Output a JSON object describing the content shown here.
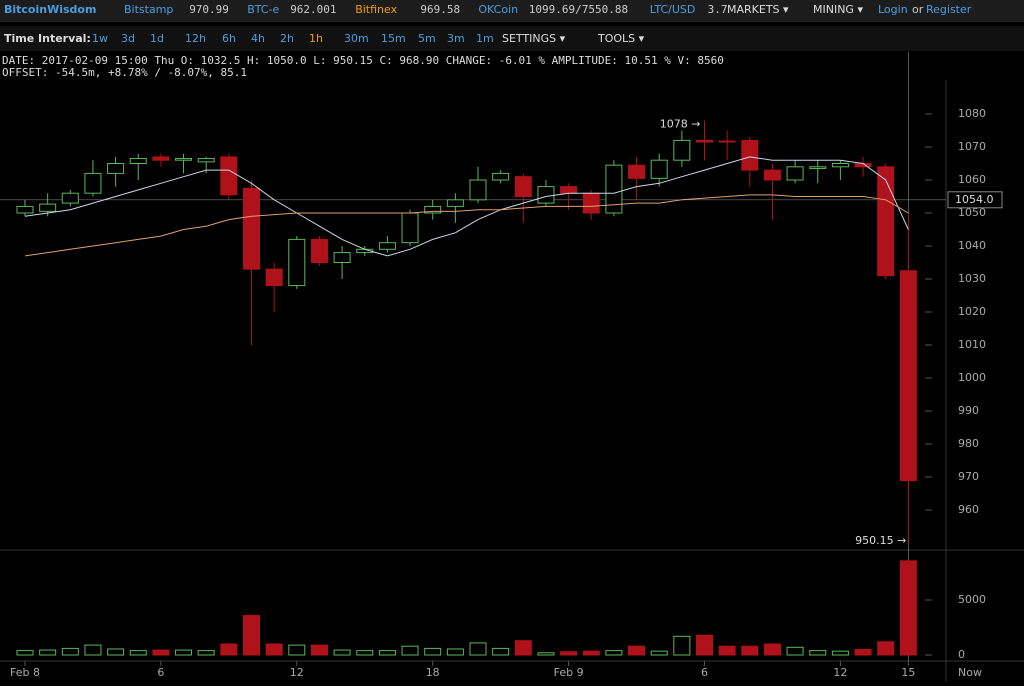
{
  "header": {
    "brand": "BitcoinWisdom",
    "tickers": [
      {
        "name": "Bitstamp",
        "price": "970.99"
      },
      {
        "name": "BTC-e",
        "price": "962.001"
      },
      {
        "name": "Bitfinex",
        "price": "969.58"
      },
      {
        "name": "OKCoin",
        "price": "1099.69/7550.88"
      },
      {
        "name": "LTC/USD",
        "price": "3.7"
      }
    ],
    "menus": [
      "MARKETS ▾",
      "MINING ▾"
    ],
    "login": "Login",
    "or": "or",
    "register": "Register"
  },
  "toolbar": {
    "label": "Time Interval:",
    "intervals": [
      "1w",
      "3d",
      "1d",
      "12h",
      "6h",
      "4h",
      "2h",
      "1h",
      "30m",
      "15m",
      "5m",
      "3m",
      "1m"
    ],
    "active": "1h",
    "menus": [
      "SETTINGS ▾",
      "TOOLS ▾"
    ]
  },
  "info": [
    "DATE: 2017-02-09 15:00 Thu    O: 1032.5    H: 1050.0    L: 950.15    C: 968.90    CHANGE: -6.01 %    AMPLITUDE: 10.51 %    V: 8560",
    "OFFSET: -54.5m, +8.78% / -8.07%, 85.1"
  ],
  "chart_data": {
    "type": "candlestick",
    "categories": [
      "Feb 8",
      null,
      null,
      null,
      null,
      null,
      "6",
      null,
      null,
      null,
      null,
      null,
      "12",
      null,
      null,
      null,
      null,
      null,
      "18",
      null,
      null,
      null,
      null,
      null,
      "Feb 9",
      null,
      null,
      null,
      null,
      null,
      "6",
      null,
      null,
      null,
      null,
      null,
      "12",
      null,
      null,
      "15"
    ],
    "now_label": "Now",
    "candles": [
      {
        "open": 1050,
        "high": 1054,
        "low": 1049,
        "close": 1052
      },
      {
        "open": 1050.5,
        "high": 1056,
        "low": 1049,
        "close": 1052.7
      },
      {
        "open": 1053,
        "high": 1057,
        "low": 1052,
        "close": 1056
      },
      {
        "open": 1056,
        "high": 1066,
        "low": 1055,
        "close": 1062
      },
      {
        "open": 1062,
        "high": 1067,
        "low": 1058,
        "close": 1065
      },
      {
        "open": 1065,
        "high": 1068,
        "low": 1060,
        "close": 1066.5
      },
      {
        "open": 1067,
        "high": 1068,
        "low": 1064,
        "close": 1066
      },
      {
        "open": 1066,
        "high": 1068,
        "low": 1062,
        "close": 1066.5
      },
      {
        "open": 1065.5,
        "high": 1067,
        "low": 1062,
        "close": 1066.5
      },
      {
        "open": 1067,
        "high": 1068,
        "low": 1054,
        "close": 1055.5
      },
      {
        "open": 1057.5,
        "high": 1060,
        "low": 1010,
        "close": 1033
      },
      {
        "open": 1033,
        "high": 1035,
        "low": 1020,
        "close": 1028
      },
      {
        "open": 1028,
        "high": 1043,
        "low": 1027,
        "close": 1042
      },
      {
        "open": 1042,
        "high": 1043,
        "low": 1034,
        "close": 1035
      },
      {
        "open": 1035,
        "high": 1040,
        "low": 1030,
        "close": 1038
      },
      {
        "open": 1038,
        "high": 1040,
        "low": 1037,
        "close": 1039
      },
      {
        "open": 1039,
        "high": 1043,
        "low": 1038,
        "close": 1041
      },
      {
        "open": 1041,
        "high": 1051,
        "low": 1040,
        "close": 1050
      },
      {
        "open": 1050,
        "high": 1054,
        "low": 1048,
        "close": 1052
      },
      {
        "open": 1052,
        "high": 1056,
        "low": 1047,
        "close": 1054
      },
      {
        "open": 1054,
        "high": 1064,
        "low": 1053,
        "close": 1060
      },
      {
        "open": 1060,
        "high": 1063,
        "low": 1059,
        "close": 1062
      },
      {
        "open": 1061,
        "high": 1062,
        "low": 1047,
        "close": 1055
      },
      {
        "open": 1053,
        "high": 1060,
        "low": 1052,
        "close": 1058
      },
      {
        "open": 1058,
        "high": 1059,
        "low": 1051,
        "close": 1056
      },
      {
        "open": 1056,
        "high": 1057,
        "low": 1048,
        "close": 1050
      },
      {
        "open": 1050,
        "high": 1066,
        "low": 1049,
        "close": 1064.5
      },
      {
        "open": 1064.5,
        "high": 1067,
        "low": 1054,
        "close": 1060.5
      },
      {
        "open": 1060.5,
        "high": 1068,
        "low": 1058,
        "close": 1066
      },
      {
        "open": 1066,
        "high": 1075,
        "low": 1064,
        "close": 1072
      },
      {
        "open": 1072,
        "high": 1078,
        "low": 1066,
        "close": 1071.5
      },
      {
        "open": 1071.8,
        "high": 1075,
        "low": 1066,
        "close": 1071.5
      },
      {
        "open": 1072,
        "high": 1073,
        "low": 1058,
        "close": 1063
      },
      {
        "open": 1063,
        "high": 1065,
        "low": 1048,
        "close": 1060
      },
      {
        "open": 1060,
        "high": 1066,
        "low": 1059,
        "close": 1064
      },
      {
        "open": 1063.5,
        "high": 1066,
        "low": 1059,
        "close": 1064
      },
      {
        "open": 1064,
        "high": 1066,
        "low": 1060,
        "close": 1065
      },
      {
        "open": 1065,
        "high": 1067,
        "low": 1061,
        "close": 1064
      },
      {
        "open": 1064,
        "high": 1065,
        "low": 1030,
        "close": 1031
      },
      {
        "open": 1032.5,
        "high": 1050,
        "low": 950.15,
        "close": 968.9
      }
    ],
    "up_color": "#5cb85c",
    "down_color": "#b0121b",
    "lines": [
      {
        "color": "#c8d8e8",
        "values": [
          1049,
          1050,
          1051,
          1053,
          1055,
          1057,
          1059,
          1061,
          1063,
          1063,
          1059,
          1054,
          1050,
          1046,
          1042,
          1039,
          1037,
          1039,
          1042,
          1044,
          1048,
          1051,
          1053,
          1055,
          1056,
          1056,
          1056,
          1058,
          1059,
          1061,
          1063,
          1065,
          1067,
          1066,
          1066,
          1066,
          1066,
          1065,
          1060,
          1045
        ]
      },
      {
        "color": "#e0a070",
        "values": [
          1037,
          1038,
          1039,
          1040,
          1041,
          1042,
          1043,
          1045,
          1046,
          1048,
          1049,
          1049.5,
          1050,
          1050,
          1050,
          1050,
          1050,
          1050,
          1050.5,
          1050.5,
          1051,
          1051,
          1051.5,
          1052,
          1052,
          1052,
          1052.5,
          1053,
          1053,
          1054,
          1054.5,
          1055,
          1055.5,
          1055.5,
          1055,
          1055,
          1055,
          1055,
          1054,
          1050
        ]
      }
    ],
    "ylim": [
      950,
      1087
    ],
    "yticks": [
      960,
      970,
      980,
      990,
      1000,
      1010,
      1020,
      1030,
      1040,
      1050,
      1060,
      1070,
      1080
    ],
    "cursor_price": {
      "value": 1054,
      "label": "1054.0"
    },
    "high_label": "1078 →",
    "low_label": "950.15 →",
    "volume": {
      "values": [
        400,
        450,
        600,
        900,
        550,
        400,
        450,
        450,
        400,
        1000,
        3600,
        1000,
        900,
        900,
        450,
        400,
        400,
        800,
        600,
        550,
        1100,
        600,
        1300,
        200,
        300,
        350,
        400,
        800,
        350,
        1700,
        1800,
        800,
        800,
        1000,
        700,
        400,
        350,
        500,
        1200,
        8560
      ],
      "ylim": [
        0,
        9000
      ],
      "yticks": [
        0,
        5000
      ]
    }
  }
}
